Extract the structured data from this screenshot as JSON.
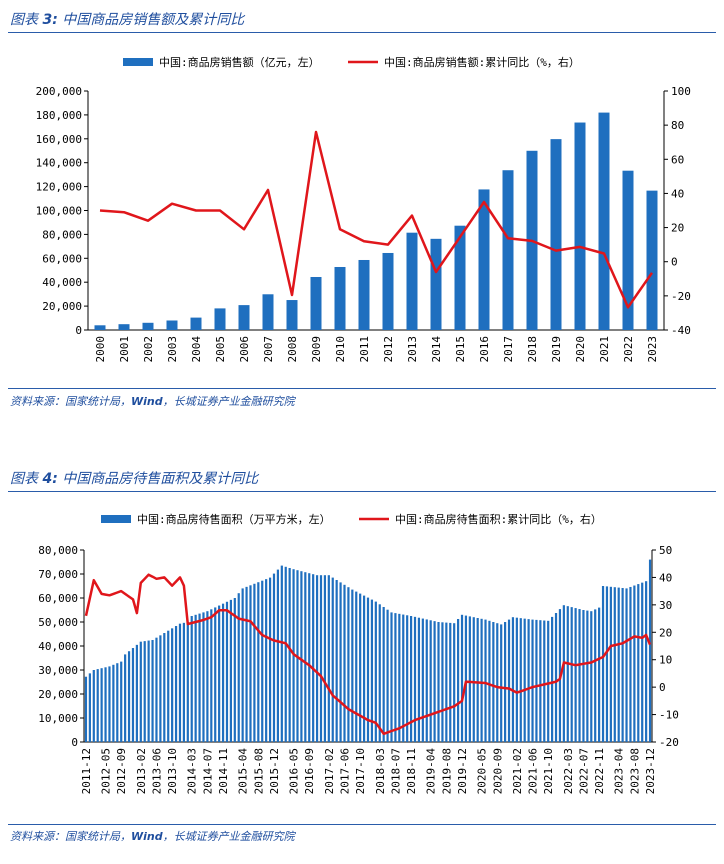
{
  "figures": [
    {
      "title_prefix": "图表",
      "title_number": "3:",
      "title_text": "中国商品房销售额及累计同比",
      "source_prefix": "资料来源：国家统计局，",
      "source_em": "Wind",
      "source_suffix": "，长城证券产业金融研究院"
    },
    {
      "title_prefix": "图表",
      "title_number": "4:",
      "title_text": "中国商品房待售面积及累计同比",
      "source_prefix": "资料来源：国家统计局，",
      "source_em": "Wind",
      "source_suffix": "，长城证券产业金融研究院"
    }
  ],
  "chart_data": [
    {
      "type": "bar",
      "secondary_type": "line",
      "legend_position": "top-center",
      "grid": false,
      "categories": [
        "2000",
        "2001",
        "2002",
        "2003",
        "2004",
        "2005",
        "2006",
        "2007",
        "2008",
        "2009",
        "2010",
        "2011",
        "2012",
        "2013",
        "2014",
        "2015",
        "2016",
        "2017",
        "2018",
        "2019",
        "2020",
        "2021",
        "2022",
        "2023"
      ],
      "series": [
        {
          "name": "中国:商品房销售额（亿元，左）",
          "axis": "left",
          "kind": "bar",
          "color": "#1f6fbf",
          "values": [
            3935,
            4863,
            6032,
            7956,
            10376,
            18080,
            20826,
            29889,
            25068,
            44355,
            52721,
            58589,
            64456,
            81428,
            76292,
            87281,
            117627,
            133701,
            149973,
            159725,
            173613,
            181930,
            133308,
            116622
          ]
        },
        {
          "name": "中国:商品房销售额:累计同比（%，右）",
          "axis": "right",
          "kind": "line",
          "color": "#e0161b",
          "values": [
            30,
            29,
            24,
            34,
            30,
            30,
            19,
            42,
            -19.5,
            76,
            19,
            12,
            10,
            27,
            -6,
            14.4,
            35,
            13.7,
            12.2,
            6.5,
            8.7,
            4.8,
            -26.7,
            -6.5
          ]
        }
      ],
      "left_axis": {
        "ylim": [
          0,
          200000
        ],
        "ticks": [
          "0",
          "20,000",
          "40,000",
          "60,000",
          "80,000",
          "100,000",
          "120,000",
          "140,000",
          "160,000",
          "180,000",
          "200,000"
        ]
      },
      "right_axis": {
        "ylim": [
          -40,
          100
        ],
        "ticks": [
          "-40",
          "-20",
          "0",
          "20",
          "40",
          "60",
          "80",
          "100"
        ]
      }
    },
    {
      "type": "bar",
      "secondary_type": "line",
      "legend_position": "top-center",
      "grid": false,
      "x_start": "2011-12",
      "x_end": "2023-12",
      "tick_labels": [
        "2011-12",
        "2012-05",
        "2012-09",
        "2013-02",
        "2013-06",
        "2013-10",
        "2014-03",
        "2014-07",
        "2014-11",
        "2015-04",
        "2015-08",
        "2015-12",
        "2016-05",
        "2016-09",
        "2017-02",
        "2017-06",
        "2017-10",
        "2018-03",
        "2018-07",
        "2018-11",
        "2019-04",
        "2019-08",
        "2019-12",
        "2020-05",
        "2020-09",
        "2021-02",
        "2021-06",
        "2021-10",
        "2022-03",
        "2022-07",
        "2022-11",
        "2023-04",
        "2023-08",
        "2023-12"
      ],
      "series": [
        {
          "name": "中国:商品房待售面积（万平方米，左）",
          "axis": "left",
          "kind": "bar",
          "color": "#1f6fbf",
          "anchors": [
            [
              "2011-12",
              27200
            ],
            [
              "2012-02",
              30000
            ],
            [
              "2012-06",
              31500
            ],
            [
              "2012-09",
              33500
            ],
            [
              "2012-10",
              36500
            ],
            [
              "2013-02",
              41800
            ],
            [
              "2013-05",
              42500
            ],
            [
              "2013-12",
              49300
            ],
            [
              "2014-02",
              50000
            ],
            [
              "2014-03",
              52500
            ],
            [
              "2014-07",
              54500
            ],
            [
              "2015-02",
              60000
            ],
            [
              "2015-04",
              64000
            ],
            [
              "2015-11",
              68500
            ],
            [
              "2016-02",
              73500
            ],
            [
              "2016-05",
              72000
            ],
            [
              "2016-11",
              69500
            ],
            [
              "2017-02",
              69500
            ],
            [
              "2017-08",
              63500
            ],
            [
              "2018-02",
              58500
            ],
            [
              "2018-06",
              54000
            ],
            [
              "2018-11",
              52500
            ],
            [
              "2019-06",
              50000
            ],
            [
              "2019-10",
              49500
            ],
            [
              "2019-12",
              53000
            ],
            [
              "2020-06",
              51000
            ],
            [
              "2020-10",
              49000
            ],
            [
              "2021-01",
              52000
            ],
            [
              "2021-06",
              51000
            ],
            [
              "2021-10",
              50500
            ],
            [
              "2022-02",
              57000
            ],
            [
              "2022-07",
              55000
            ],
            [
              "2022-09",
              54500
            ],
            [
              "2022-11",
              56000
            ],
            [
              "2022-12",
              65000
            ],
            [
              "2023-06",
              64000
            ],
            [
              "2023-11",
              67000
            ],
            [
              "2023-12",
              76000
            ]
          ]
        },
        {
          "name": "中国:商品房待售面积:累计同比（%，右）",
          "axis": "right",
          "kind": "line",
          "color": "#e0161b",
          "anchors": [
            [
              "2011-12",
              26
            ],
            [
              "2012-02",
              39
            ],
            [
              "2012-04",
              34
            ],
            [
              "2012-06",
              33.5
            ],
            [
              "2012-09",
              35
            ],
            [
              "2012-12",
              32
            ],
            [
              "2013-01",
              27
            ],
            [
              "2013-02",
              38
            ],
            [
              "2013-04",
              41
            ],
            [
              "2013-06",
              39.5
            ],
            [
              "2013-08",
              40
            ],
            [
              "2013-10",
              37
            ],
            [
              "2013-12",
              40
            ],
            [
              "2014-01",
              37
            ],
            [
              "2014-02",
              23
            ],
            [
              "2014-06",
              24.5
            ],
            [
              "2014-08",
              25.5
            ],
            [
              "2014-10",
              28
            ],
            [
              "2014-12",
              28
            ],
            [
              "2015-03",
              25
            ],
            [
              "2015-06",
              24
            ],
            [
              "2015-09",
              19
            ],
            [
              "2015-12",
              17
            ],
            [
              "2016-03",
              16
            ],
            [
              "2016-05",
              12
            ],
            [
              "2016-09",
              8
            ],
            [
              "2016-12",
              4
            ],
            [
              "2017-03",
              -3
            ],
            [
              "2017-07",
              -8
            ],
            [
              "2017-12",
              -12
            ],
            [
              "2018-02",
              -13
            ],
            [
              "2018-04",
              -17
            ],
            [
              "2018-08",
              -15
            ],
            [
              "2018-12",
              -12
            ],
            [
              "2019-06",
              -9
            ],
            [
              "2019-10",
              -7
            ],
            [
              "2019-12",
              -5
            ],
            [
              "2020-01",
              2
            ],
            [
              "2020-06",
              1.5
            ],
            [
              "2020-09",
              0
            ],
            [
              "2020-12",
              -0.5
            ],
            [
              "2021-02",
              -2
            ],
            [
              "2021-06",
              0
            ],
            [
              "2021-12",
              2
            ],
            [
              "2022-01",
              3
            ],
            [
              "2022-02",
              9
            ],
            [
              "2022-05",
              8
            ],
            [
              "2022-09",
              9
            ],
            [
              "2022-12",
              11
            ],
            [
              "2023-02",
              15
            ],
            [
              "2023-05",
              16
            ],
            [
              "2023-08",
              18.5
            ],
            [
              "2023-10",
              18
            ],
            [
              "2023-11",
              19
            ],
            [
              "2023-12",
              15.5
            ]
          ]
        }
      ],
      "left_axis": {
        "ylim": [
          0,
          80000
        ],
        "ticks": [
          "0",
          "10,000",
          "20,000",
          "30,000",
          "40,000",
          "50,000",
          "60,000",
          "70,000",
          "80,000"
        ]
      },
      "right_axis": {
        "ylim": [
          -20,
          50
        ],
        "ticks": [
          "-20",
          "-10",
          "0",
          "10",
          "20",
          "30",
          "40",
          "50"
        ]
      }
    }
  ]
}
